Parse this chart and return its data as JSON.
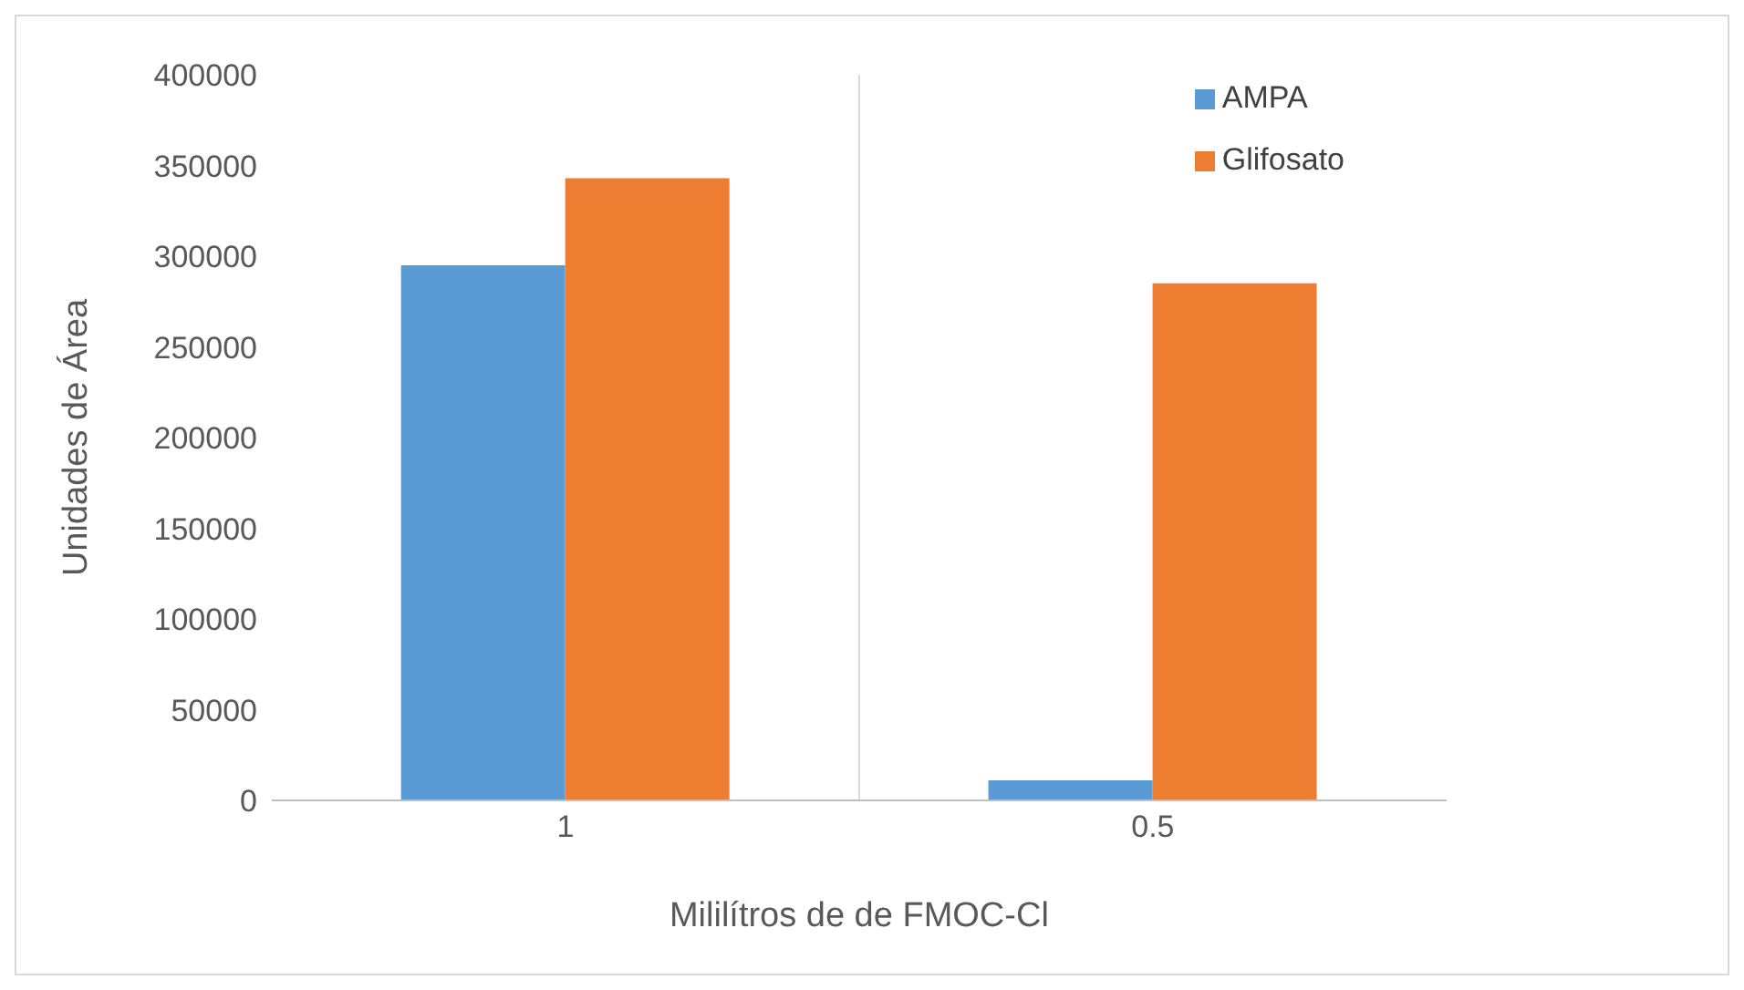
{
  "chart_data": {
    "type": "bar",
    "xlabel": "Mililítros de de FMOC-Cl",
    "ylabel": "Unidades de Área",
    "categories": [
      "1",
      "0.5"
    ],
    "series": [
      {
        "name": "AMPA",
        "color": "#5b9bd5",
        "values": [
          295000,
          11000
        ]
      },
      {
        "name": "Glifosato",
        "color": "#ed7d31",
        "values": [
          343000,
          285000
        ]
      }
    ],
    "ylim": [
      0,
      400000
    ],
    "yticks": [
      0,
      50000,
      100000,
      150000,
      200000,
      250000,
      300000,
      350000,
      400000
    ],
    "grid": "x",
    "legend": "top right"
  }
}
